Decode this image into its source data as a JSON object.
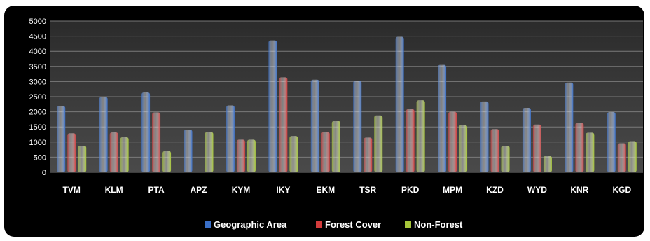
{
  "chart_data": {
    "type": "bar",
    "categories": [
      "TVM",
      "KLM",
      "PTA",
      "APZ",
      "KYM",
      "IKY",
      "EKM",
      "TSR",
      "PKD",
      "MPM",
      "KZD",
      "WYD",
      "KNR",
      "KGD"
    ],
    "series": [
      {
        "name": "Geographic  Area",
        "color": "#3a6fc7",
        "values": [
          2190,
          2490,
          2640,
          1410,
          2210,
          4360,
          3060,
          3030,
          4480,
          3550,
          2340,
          2130,
          2970,
          1990
        ]
      },
      {
        "name": "Forest Cover",
        "color": "#d23b3b",
        "values": [
          1290,
          1320,
          1980,
          20,
          1080,
          3140,
          1330,
          1150,
          2090,
          2000,
          1430,
          1580,
          1640,
          960
        ]
      },
      {
        "name": "Non-Forest",
        "color": "#a6c63a",
        "values": [
          880,
          1160,
          700,
          1330,
          1080,
          1200,
          1700,
          1880,
          2380,
          1560,
          880,
          540,
          1310,
          1030
        ]
      }
    ],
    "yticks": [
      "0",
      "500",
      "1000",
      "1500",
      "2000",
      "2500",
      "3000",
      "3500",
      "4000",
      "4500",
      "5000"
    ],
    "ylim": [
      0,
      5000
    ],
    "grid": true,
    "legend_position": "bottom"
  }
}
